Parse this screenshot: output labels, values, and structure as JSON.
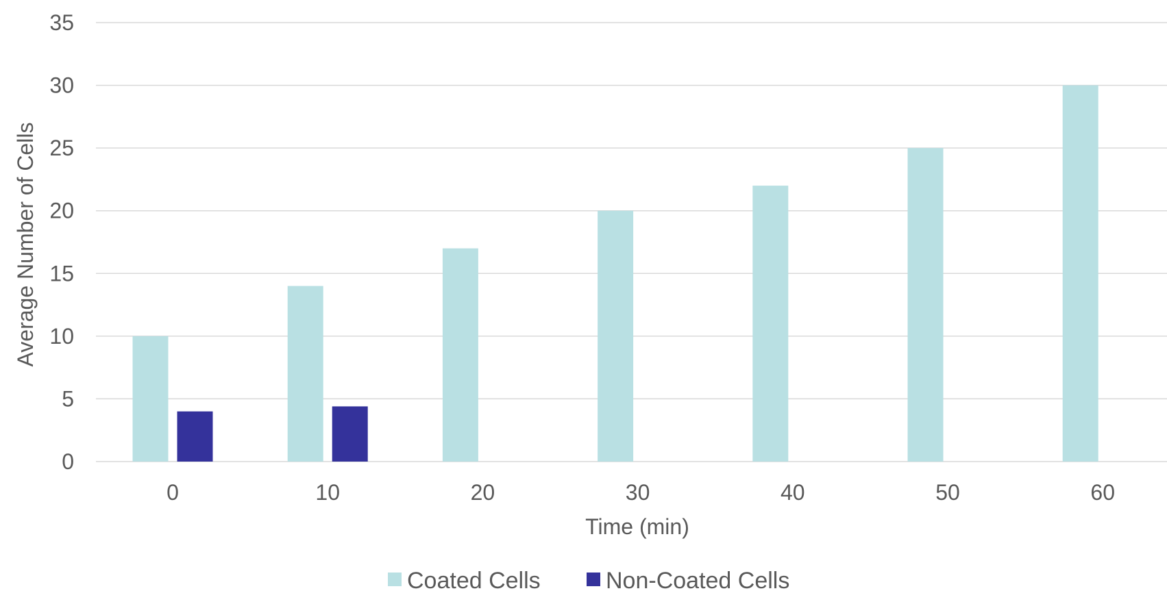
{
  "chart_data": {
    "type": "bar",
    "title": "",
    "xlabel": "Time (min)",
    "ylabel": "Average Number of Cells",
    "categories": [
      "0",
      "10",
      "20",
      "30",
      "40",
      "50",
      "60"
    ],
    "series": [
      {
        "name": "Coated Cells",
        "color": "#b9e0e3",
        "values": [
          10,
          14,
          17,
          20,
          22,
          25,
          30
        ]
      },
      {
        "name": "Non-Coated Cells",
        "color": "#34329b",
        "values": [
          4,
          4.4,
          null,
          null,
          null,
          null,
          null
        ]
      }
    ],
    "ylim": [
      0,
      35
    ],
    "yticks": [
      0,
      5,
      10,
      15,
      20,
      25,
      30,
      35
    ],
    "grid": true,
    "legend_position": "bottom"
  }
}
